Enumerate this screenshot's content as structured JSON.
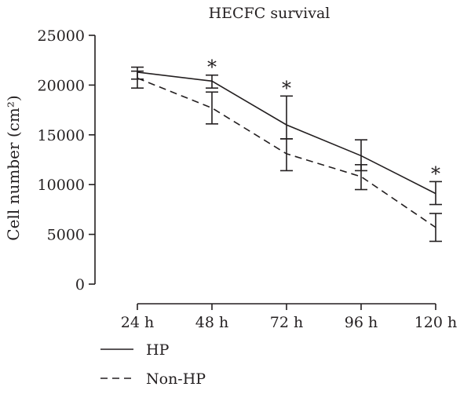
{
  "chart_data": {
    "type": "line",
    "title": "HECFC survival",
    "xlabel": "",
    "ylabel": "Cell number (cm²)",
    "categories": [
      "24 h",
      "48 h",
      "72 h",
      "96 h",
      "120 h"
    ],
    "ylim": [
      0,
      25000
    ],
    "yticks": [
      0,
      5000,
      10000,
      15000,
      20000,
      25000
    ],
    "ytick_labels": [
      "0",
      "5000",
      "10000",
      "15000",
      "20000",
      "25000"
    ],
    "grid": false,
    "legend_position": "bottom-left",
    "series": [
      {
        "name": "HP",
        "line_style": "solid",
        "values": [
          21300,
          20400,
          16000,
          12900,
          9100
        ],
        "error_low": [
          20600,
          19700,
          14600,
          11400,
          8000
        ],
        "error_high": [
          21800,
          21000,
          18900,
          14500,
          10300
        ]
      },
      {
        "name": "Non-HP",
        "line_style": "dashed",
        "values": [
          20700,
          17700,
          13100,
          10800,
          5700
        ],
        "error_low": [
          19700,
          16100,
          11400,
          9500,
          4300
        ],
        "error_high": [
          21400,
          19300,
          14600,
          12000,
          7100
        ]
      }
    ],
    "annotations": [
      {
        "category": "48 h",
        "text": "*"
      },
      {
        "category": "72 h",
        "text": "*"
      },
      {
        "category": "120 h",
        "text": "*"
      }
    ]
  }
}
